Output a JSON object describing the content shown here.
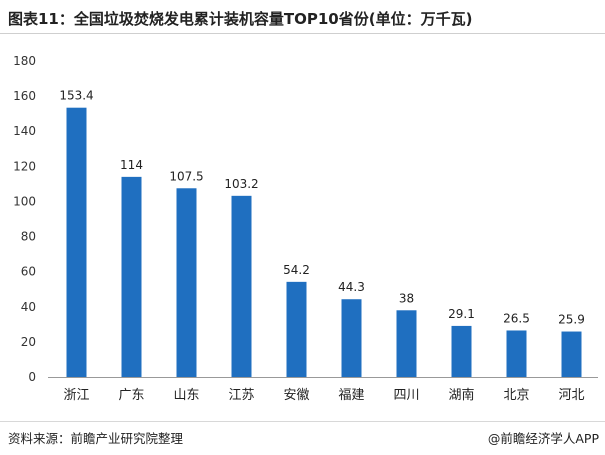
{
  "title": "图表11：全国垃圾焚烧发电累计装机容量TOP10省份(单位：万千瓦)",
  "source": "资料来源：前瞻产业研究院整理",
  "brand": "@前瞻经济学人APP",
  "colors": {
    "bar": "#1f6fc0",
    "axis": "#999999"
  },
  "chart_data": {
    "type": "bar",
    "categories": [
      "浙江",
      "广东",
      "山东",
      "江苏",
      "安徽",
      "福建",
      "四川",
      "湖南",
      "北京",
      "河北"
    ],
    "values": [
      153.4,
      114,
      107.5,
      103.2,
      54.2,
      44.3,
      38,
      29.1,
      26.5,
      25.9
    ],
    "value_labels": [
      "153.4",
      "114",
      "107.5",
      "103.2",
      "54.2",
      "44.3",
      "38",
      "29.1",
      "26.5",
      "25.9"
    ],
    "yticks": [
      "0",
      "20",
      "40",
      "60",
      "80",
      "100",
      "120",
      "140",
      "160",
      "180"
    ],
    "ylim": [
      0,
      180
    ],
    "xlabel": "",
    "ylabel": ""
  }
}
